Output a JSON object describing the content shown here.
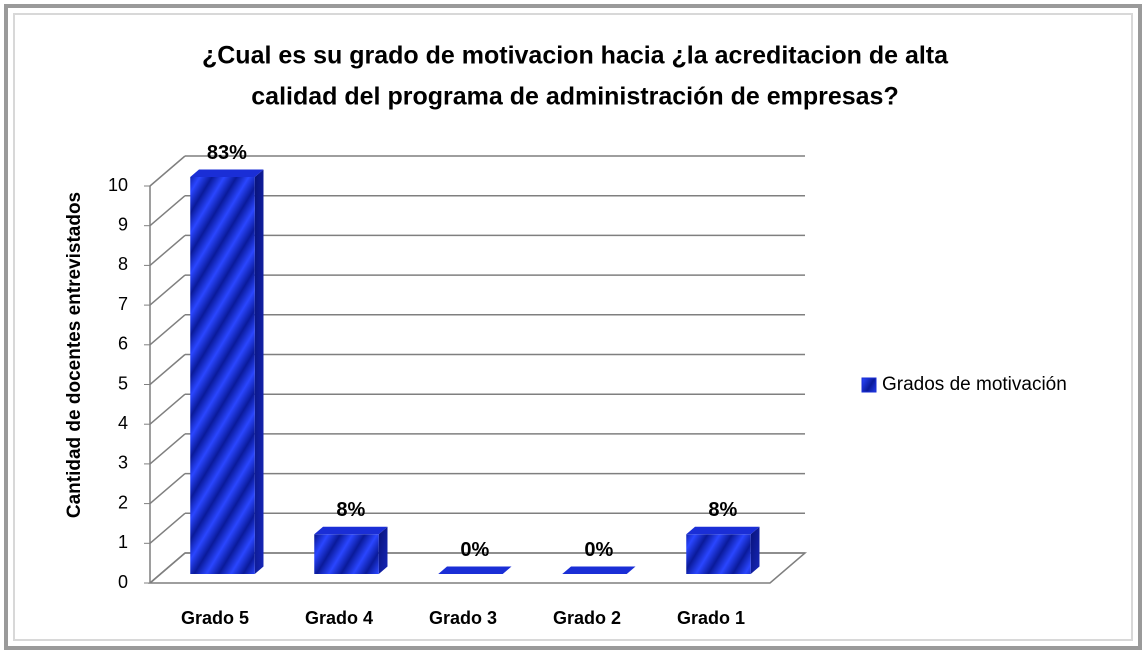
{
  "chart_data": {
    "type": "bar3d",
    "title": [
      "¿Cual es su grado de motivacion hacia ¿la acreditacion de alta",
      "calidad del programa de administración de empresas?"
    ],
    "y_label": "Cantidad de docentes entrevistados",
    "categories": [
      "Grado 5",
      "Grado 4",
      "Grado 3",
      "Grado 2",
      "Grado 1"
    ],
    "series": [
      {
        "name": "Grados de motivación",
        "color": "#1a2ed6",
        "values": [
          10,
          1,
          0,
          0,
          1
        ],
        "value_labels": [
          "83%",
          "8%",
          "0%",
          "0%",
          "8%"
        ]
      }
    ],
    "ylim": [
      0,
      10
    ],
    "yticks": [
      0,
      1,
      2,
      3,
      4,
      5,
      6,
      7,
      8,
      9,
      10
    ],
    "grid": true,
    "legend": "right"
  }
}
